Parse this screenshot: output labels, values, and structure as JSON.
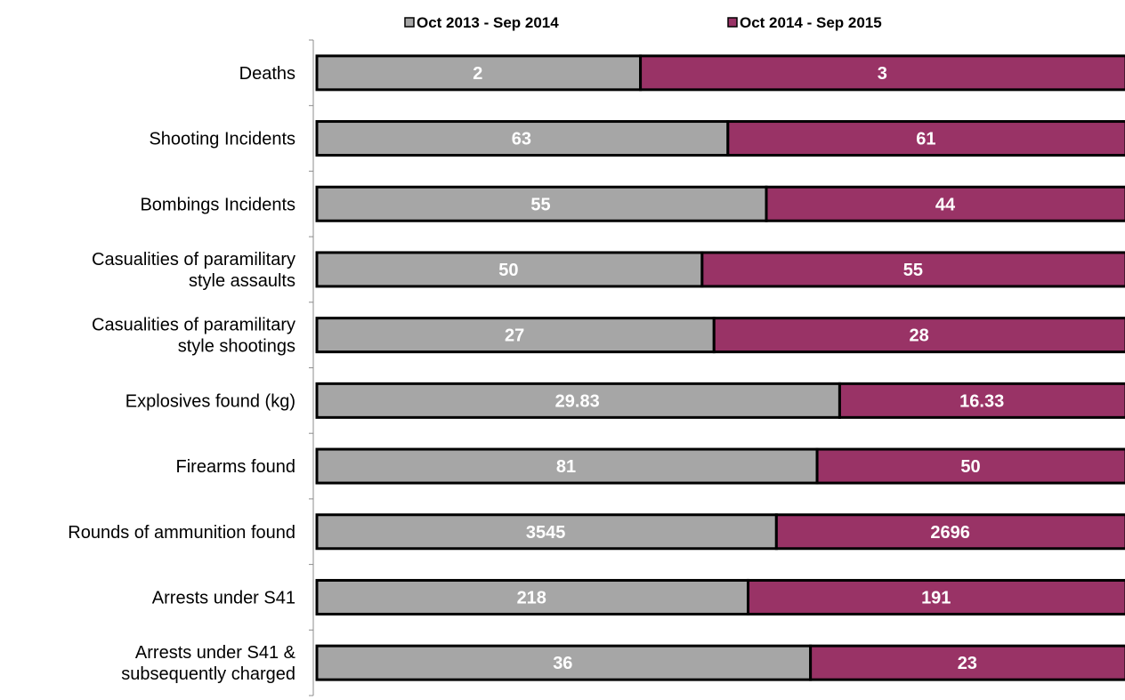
{
  "chart_data": {
    "type": "bar",
    "orientation": "horizontal",
    "stacking": "percent",
    "categories": [
      [
        "Deaths"
      ],
      [
        "Shooting Incidents"
      ],
      [
        "Bombings Incidents"
      ],
      [
        "Casualities of paramilitary",
        "style assaults"
      ],
      [
        "Casualities of paramilitary",
        "style shootings"
      ],
      [
        "Explosives found (kg)"
      ],
      [
        "Firearms found"
      ],
      [
        "Rounds of ammunition found"
      ],
      [
        "Arrests under S41"
      ],
      [
        "Arrests under S41 &",
        "subsequently charged"
      ]
    ],
    "series": [
      {
        "name": "Oct 2013 - Sep 2014",
        "color": "#a6a6a6",
        "values": [
          2,
          63,
          55,
          50,
          27,
          29.83,
          81,
          3545,
          218,
          36
        ],
        "labels": [
          "2",
          "63",
          "55",
          "50",
          "27",
          "29.83",
          "81",
          "3545",
          "218",
          "36"
        ]
      },
      {
        "name": "Oct 2014 - Sep 2015",
        "color": "#993366",
        "values": [
          3,
          61,
          44,
          55,
          28,
          16.33,
          50,
          2696,
          191,
          23
        ],
        "labels": [
          "3",
          "61",
          "44",
          "55",
          "28",
          "16.33",
          "50",
          "2696",
          "191",
          "23"
        ]
      }
    ],
    "legend_position": "top",
    "grid": false
  }
}
